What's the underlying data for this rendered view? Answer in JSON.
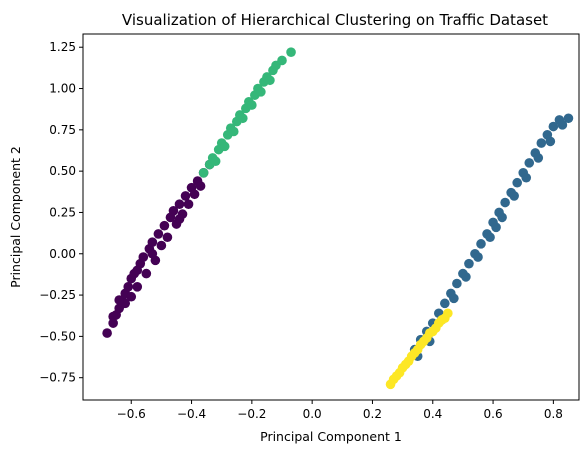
{
  "chart_data": {
    "type": "scatter",
    "title": "Visualization of Hierarchical Clustering on Traffic Dataset",
    "xlabel": "Principal Component 1",
    "ylabel": "Principal Component 2",
    "xlim": [
      -0.76,
      0.885
    ],
    "ylim": [
      -0.885,
      1.33
    ],
    "xticks": [
      -0.6,
      -0.4,
      -0.2,
      0.0,
      0.2,
      0.4,
      0.6,
      0.8
    ],
    "xtick_labels": [
      "−0.6",
      "−0.4",
      "−0.2",
      "0.0",
      "0.2",
      "0.4",
      "0.6",
      "0.8"
    ],
    "yticks": [
      -0.75,
      -0.5,
      -0.25,
      0.0,
      0.25,
      0.5,
      0.75,
      1.0,
      1.25
    ],
    "ytick_labels": [
      "−0.75",
      "−0.50",
      "−0.25",
      "0.00",
      "0.25",
      "0.50",
      "0.75",
      "1.00",
      "1.25"
    ],
    "grid": false,
    "legend": "none",
    "series": [
      {
        "cluster": 0,
        "color": "#440154",
        "points": [
          [
            -0.68,
            -0.48
          ],
          [
            -0.66,
            -0.42
          ],
          [
            -0.65,
            -0.37
          ],
          [
            -0.64,
            -0.33
          ],
          [
            -0.63,
            -0.28
          ],
          [
            -0.62,
            -0.24
          ],
          [
            -0.61,
            -0.2
          ],
          [
            -0.6,
            -0.15
          ],
          [
            -0.59,
            -0.12
          ],
          [
            -0.57,
            -0.06
          ],
          [
            -0.56,
            -0.02
          ],
          [
            -0.54,
            0.03
          ],
          [
            -0.53,
            0.07
          ],
          [
            -0.51,
            0.12
          ],
          [
            -0.49,
            0.17
          ],
          [
            -0.47,
            0.22
          ],
          [
            -0.46,
            0.26
          ],
          [
            -0.44,
            0.3
          ],
          [
            -0.42,
            0.35
          ],
          [
            -0.4,
            0.4
          ],
          [
            -0.38,
            0.44
          ],
          [
            -0.36,
            0.49
          ],
          [
            -0.34,
            0.54
          ],
          [
            -0.62,
            -0.3
          ],
          [
            -0.6,
            -0.26
          ],
          [
            -0.58,
            -0.2
          ],
          [
            -0.55,
            -0.12
          ],
          [
            -0.52,
            -0.04
          ],
          [
            -0.5,
            0.05
          ],
          [
            -0.48,
            0.1
          ],
          [
            -0.45,
            0.18
          ],
          [
            -0.43,
            0.24
          ],
          [
            -0.41,
            0.3
          ],
          [
            -0.39,
            0.36
          ],
          [
            -0.37,
            0.41
          ],
          [
            -0.66,
            -0.38
          ],
          [
            -0.64,
            -0.28
          ],
          [
            -0.58,
            -0.1
          ],
          [
            -0.53,
            0.0
          ],
          [
            -0.44,
            0.21
          ]
        ]
      },
      {
        "cluster": 1,
        "color": "#31688e",
        "points": [
          [
            0.34,
            -0.58
          ],
          [
            0.36,
            -0.52
          ],
          [
            0.38,
            -0.47
          ],
          [
            0.4,
            -0.42
          ],
          [
            0.42,
            -0.36
          ],
          [
            0.44,
            -0.3
          ],
          [
            0.46,
            -0.24
          ],
          [
            0.48,
            -0.18
          ],
          [
            0.5,
            -0.12
          ],
          [
            0.52,
            -0.06
          ],
          [
            0.54,
            0.0
          ],
          [
            0.56,
            0.06
          ],
          [
            0.58,
            0.12
          ],
          [
            0.6,
            0.19
          ],
          [
            0.62,
            0.25
          ],
          [
            0.64,
            0.31
          ],
          [
            0.66,
            0.37
          ],
          [
            0.68,
            0.43
          ],
          [
            0.7,
            0.49
          ],
          [
            0.72,
            0.55
          ],
          [
            0.74,
            0.61
          ],
          [
            0.76,
            0.67
          ],
          [
            0.78,
            0.72
          ],
          [
            0.8,
            0.77
          ],
          [
            0.82,
            0.81
          ],
          [
            0.85,
            0.82
          ],
          [
            0.83,
            0.78
          ],
          [
            0.79,
            0.68
          ],
          [
            0.75,
            0.58
          ],
          [
            0.71,
            0.46
          ],
          [
            0.67,
            0.35
          ],
          [
            0.63,
            0.22
          ],
          [
            0.59,
            0.1
          ],
          [
            0.55,
            -0.02
          ],
          [
            0.51,
            -0.14
          ],
          [
            0.47,
            -0.27
          ],
          [
            0.43,
            -0.4
          ],
          [
            0.39,
            -0.53
          ],
          [
            0.35,
            -0.62
          ],
          [
            0.61,
            0.16
          ]
        ]
      },
      {
        "cluster": 2,
        "color": "#35b779",
        "points": [
          [
            -0.36,
            0.49
          ],
          [
            -0.34,
            0.54
          ],
          [
            -0.33,
            0.58
          ],
          [
            -0.31,
            0.63
          ],
          [
            -0.3,
            0.67
          ],
          [
            -0.28,
            0.72
          ],
          [
            -0.27,
            0.76
          ],
          [
            -0.25,
            0.8
          ],
          [
            -0.24,
            0.84
          ],
          [
            -0.22,
            0.88
          ],
          [
            -0.21,
            0.92
          ],
          [
            -0.19,
            0.96
          ],
          [
            -0.18,
            1.0
          ],
          [
            -0.16,
            1.04
          ],
          [
            -0.15,
            1.07
          ],
          [
            -0.13,
            1.11
          ],
          [
            -0.12,
            1.14
          ],
          [
            -0.1,
            1.17
          ],
          [
            -0.07,
            1.22
          ],
          [
            -0.32,
            0.56
          ],
          [
            -0.29,
            0.65
          ],
          [
            -0.26,
            0.74
          ],
          [
            -0.23,
            0.82
          ],
          [
            -0.2,
            0.9
          ],
          [
            -0.17,
            0.98
          ],
          [
            -0.14,
            1.05
          ]
        ]
      },
      {
        "cluster": 3,
        "color": "#fde725",
        "points": [
          [
            0.26,
            -0.79
          ],
          [
            0.27,
            -0.76
          ],
          [
            0.29,
            -0.72
          ],
          [
            0.3,
            -0.69
          ],
          [
            0.32,
            -0.65
          ],
          [
            0.33,
            -0.62
          ],
          [
            0.35,
            -0.58
          ],
          [
            0.36,
            -0.55
          ],
          [
            0.38,
            -0.51
          ],
          [
            0.39,
            -0.48
          ],
          [
            0.41,
            -0.45
          ],
          [
            0.42,
            -0.42
          ],
          [
            0.44,
            -0.39
          ],
          [
            0.45,
            -0.36
          ],
          [
            0.28,
            -0.74
          ],
          [
            0.31,
            -0.67
          ],
          [
            0.34,
            -0.6
          ],
          [
            0.37,
            -0.53
          ],
          [
            0.4,
            -0.47
          ],
          [
            0.43,
            -0.4
          ]
        ]
      }
    ]
  }
}
